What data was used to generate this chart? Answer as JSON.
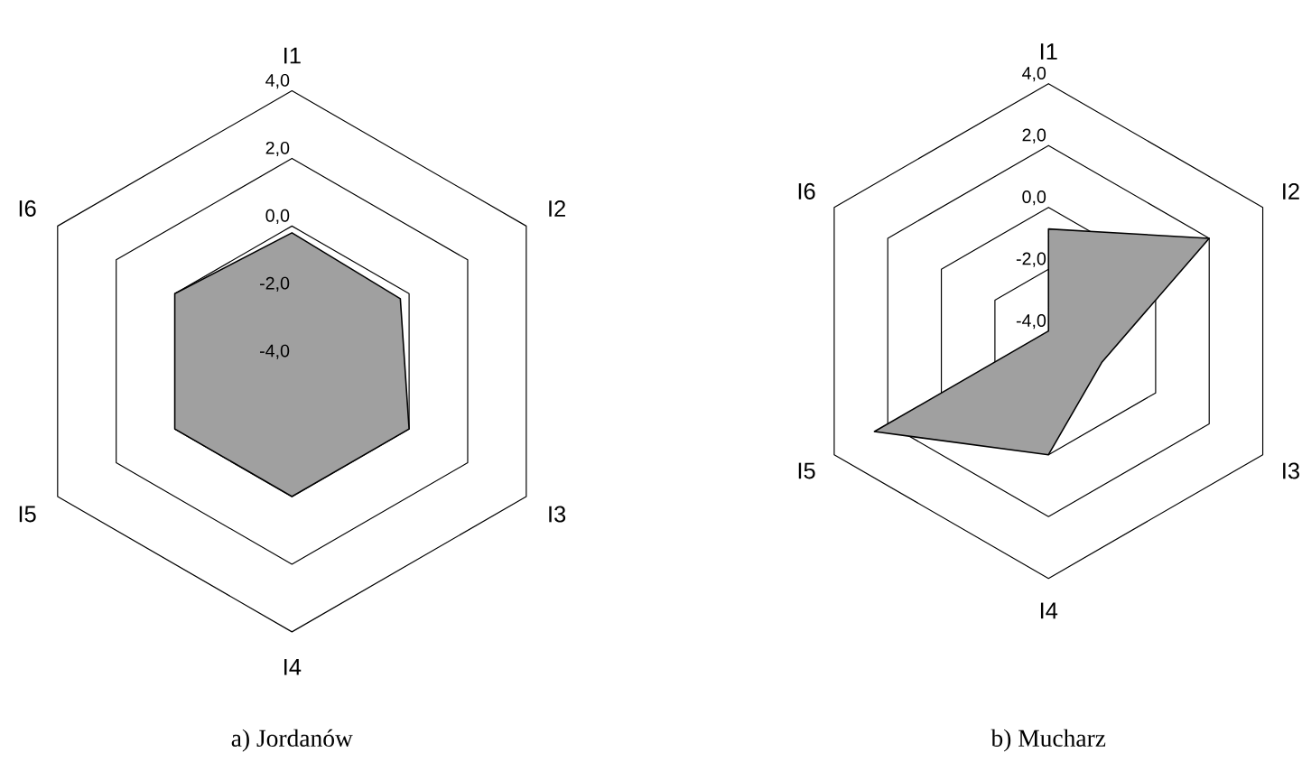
{
  "chart_data": [
    {
      "type": "radar",
      "title": "a) Jordanów",
      "categories": [
        "I1",
        "I2",
        "I3",
        "I4",
        "I5",
        "I6"
      ],
      "series": [
        {
          "color": "#a0a0a0",
          "values": [
            -0.2,
            -0.3,
            0.0,
            0.0,
            0.0,
            0.0
          ]
        }
      ],
      "ylim": [
        -4,
        4
      ],
      "yticks": [
        {
          "value": -4,
          "label": "-4,0"
        },
        {
          "value": -2,
          "label": "-2,0"
        },
        {
          "value": 0,
          "label": "0,0"
        },
        {
          "value": 2,
          "label": "2,0"
        },
        {
          "value": 4,
          "label": "4,0"
        }
      ]
    },
    {
      "type": "radar",
      "title": "b) Mucharz",
      "categories": [
        "I1",
        "I2",
        "I3",
        "I4",
        "I5",
        "I6"
      ],
      "series": [
        {
          "color": "#a0a0a0",
          "values": [
            -0.7,
            2.0,
            -2.0,
            0.0,
            2.5,
            -4.0
          ]
        }
      ],
      "ylim": [
        -4,
        4
      ],
      "yticks": [
        {
          "value": -4,
          "label": "-4,0"
        },
        {
          "value": -2,
          "label": "-2,0"
        },
        {
          "value": 0,
          "label": "0,0"
        },
        {
          "value": 2,
          "label": "2,0"
        },
        {
          "value": 4,
          "label": "4,0"
        }
      ]
    }
  ]
}
